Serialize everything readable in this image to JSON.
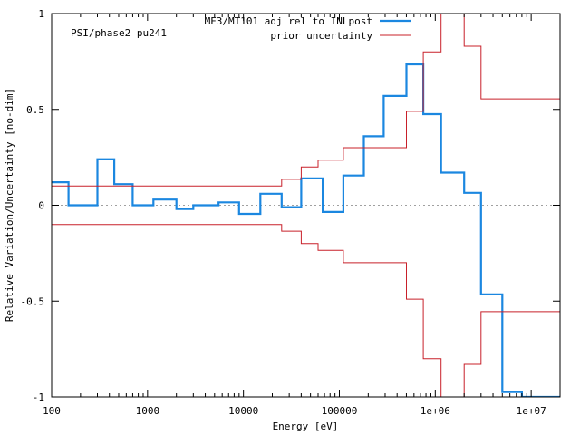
{
  "chart_data": {
    "type": "line",
    "step": true,
    "xscale": "log",
    "xlim": [
      100,
      20000000
    ],
    "ylim": [
      -1,
      1
    ],
    "xlabel": "Energy [eV]",
    "ylabel": "Relative Variation/Uncertainty [no-dim]",
    "annotation": "PSI/phase2 pu241",
    "x_tick_labels": [
      {
        "value": 100,
        "label": "100"
      },
      {
        "value": 1000,
        "label": "1000"
      },
      {
        "value": 10000,
        "label": "10000"
      },
      {
        "value": 100000,
        "label": "100000"
      },
      {
        "value": 1000000,
        "label": "1e+06"
      },
      {
        "value": 10000000,
        "label": "1e+07"
      }
    ],
    "y_tick_labels": [
      {
        "value": 1,
        "label": "1"
      },
      {
        "value": 0.5,
        "label": "0.5"
      },
      {
        "value": 0,
        "label": "0"
      },
      {
        "value": -0.5,
        "label": "-0.5"
      },
      {
        "value": -1,
        "label": "-1"
      }
    ],
    "zero_line": true,
    "legend": [
      {
        "name": "MF3/MT101 adj rel to INLpost",
        "color": "#1b87e0"
      },
      {
        "name": "prior uncertainty",
        "color": "#c8202a"
      }
    ],
    "series": [
      {
        "name": "MF3/MT101 adj rel to INLpost",
        "color": "#1b87e0",
        "edges": [
          100,
          150,
          300,
          450,
          700,
          1150,
          2000,
          3000,
          5500,
          9000,
          15000,
          25000,
          40000,
          67000,
          110000,
          180000,
          290000,
          500000,
          750000,
          1150000,
          2000000,
          3000000,
          5000000,
          8000000,
          20000000
        ],
        "values": [
          0.12,
          0.0,
          0.24,
          0.11,
          0.0,
          0.03,
          -0.02,
          0.0,
          0.015,
          -0.045,
          0.06,
          -0.01,
          0.14,
          -0.035,
          0.155,
          0.36,
          0.57,
          0.735,
          0.475,
          0.17,
          0.065,
          -0.465,
          -0.975,
          -1.0
        ]
      },
      {
        "name": "prior uncertainty",
        "color": "#c8202a",
        "edges": [
          100,
          25000,
          40000,
          60000,
          110000,
          500000,
          750000,
          1150000,
          2000000,
          3000000,
          20000000
        ],
        "values": [
          0.1,
          0.135,
          0.2,
          0.235,
          0.3,
          0.49,
          0.8,
          1.0,
          0.83,
          0.555
        ]
      },
      {
        "name": "prior uncertainty (lower)",
        "color": "#c8202a",
        "edges": [
          100,
          25000,
          40000,
          60000,
          110000,
          500000,
          750000,
          1150000,
          2000000,
          3000000,
          20000000
        ],
        "values": [
          -0.1,
          -0.135,
          -0.2,
          -0.235,
          -0.3,
          -0.49,
          -0.8,
          -1.0,
          -0.83,
          -0.555
        ]
      }
    ]
  }
}
